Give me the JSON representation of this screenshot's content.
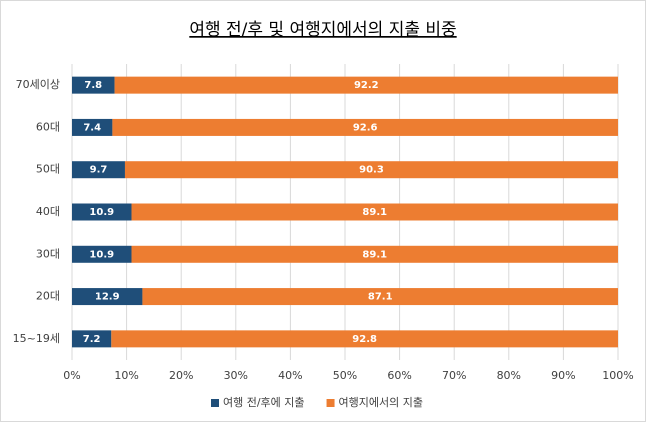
{
  "chart_data": {
    "type": "bar",
    "orientation": "horizontal",
    "stacked": true,
    "title": "여행 전/후 및 여행지에서의 지출 비중",
    "categories": [
      "70세이상",
      "60대",
      "50대",
      "40대",
      "30대",
      "20대",
      "15~19세"
    ],
    "series": [
      {
        "name": "여행 전/후에 지출",
        "color": "#1f4e79",
        "values": [
          7.8,
          7.4,
          9.7,
          10.9,
          10.9,
          12.9,
          7.2
        ]
      },
      {
        "name": "여행지에서의 지출",
        "color": "#ed7d31",
        "values": [
          92.2,
          92.6,
          90.3,
          89.1,
          89.1,
          87.1,
          92.8
        ]
      }
    ],
    "xlim": [
      0,
      100
    ],
    "xticks": [
      {
        "value": 0,
        "label": "0%"
      },
      {
        "value": 10,
        "label": "10%"
      },
      {
        "value": 20,
        "label": "20%"
      },
      {
        "value": 30,
        "label": "30%"
      },
      {
        "value": 40,
        "label": "40%"
      },
      {
        "value": 50,
        "label": "50%"
      },
      {
        "value": 60,
        "label": "60%"
      },
      {
        "value": 70,
        "label": "70%"
      },
      {
        "value": 80,
        "label": "80%"
      },
      {
        "value": 90,
        "label": "90%"
      },
      {
        "value": 100,
        "label": "100%"
      }
    ],
    "grid": true,
    "legend": "bottom"
  }
}
